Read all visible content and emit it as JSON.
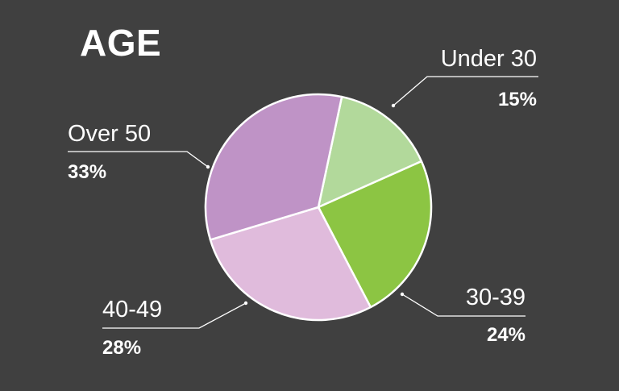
{
  "chart_data": {
    "type": "pie",
    "title": "AGE",
    "slices": [
      {
        "label": "Under 30",
        "value": 15,
        "value_label": "15%",
        "color": "#b2d99b"
      },
      {
        "label": "30-39",
        "value": 24,
        "value_label": "24%",
        "color": "#8cc543"
      },
      {
        "label": "40-49",
        "value": 28,
        "value_label": "28%",
        "color": "#e0bbdc"
      },
      {
        "label": "Over 50",
        "value": 33,
        "value_label": "33%",
        "color": "#bf93c6"
      }
    ],
    "slice_border_color": "#ffffff",
    "leader_line_color": "#ffffff",
    "background_color": "#404040",
    "legend": "none"
  }
}
